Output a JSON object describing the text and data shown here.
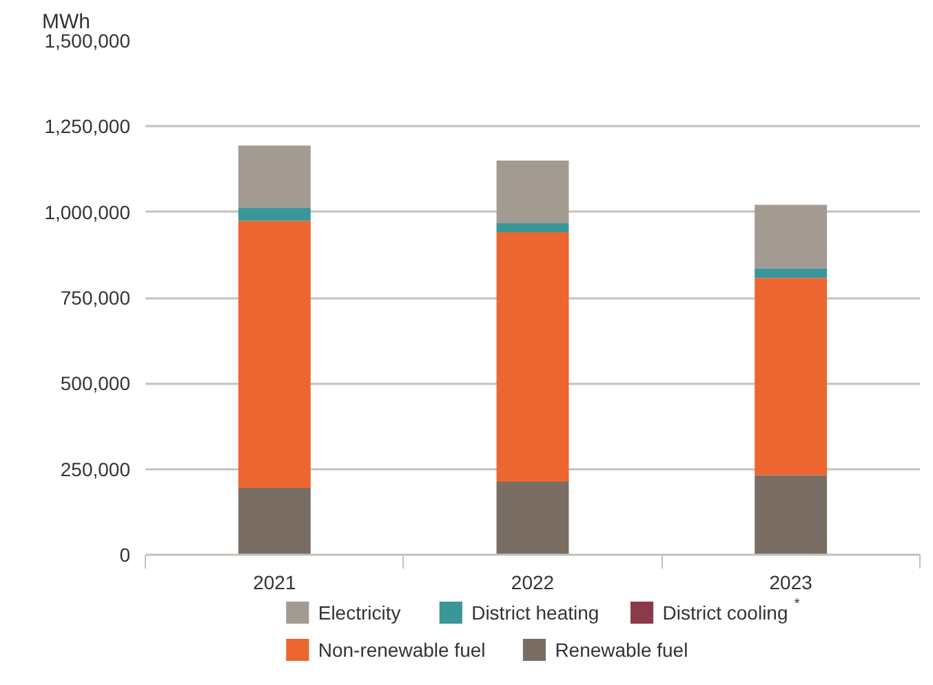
{
  "chart_data": {
    "type": "bar",
    "stacked": true,
    "ylabel": "MWh",
    "categories": [
      "2021",
      "2022",
      "2023"
    ],
    "series": [
      {
        "name": "Renewable fuel",
        "color": "#7a6e64",
        "values": [
          195000,
          213000,
          232000
        ]
      },
      {
        "name": "Non-renewable fuel",
        "color": "#eb6630",
        "values": [
          779000,
          728000,
          576000
        ]
      },
      {
        "name": "District cooling$^{*}$",
        "color": "#8b3a49",
        "values": [
          0,
          0,
          0
        ]
      },
      {
        "name": "District heating",
        "color": "#3a9797",
        "values": [
          39000,
          26000,
          28000
        ]
      },
      {
        "name": "Electricity",
        "color": "#a39a92",
        "values": [
          181000,
          183000,
          185000
        ]
      }
    ],
    "ylim": [
      0,
      1500000
    ],
    "yticks": [
      0,
      {
        "value": 250000,
        "label": "250,000"
      },
      {
        "value": 500000,
        "label": "500,000"
      },
      {
        "value": 750000,
        "label": "750,000"
      },
      {
        "value": 1000000,
        "label": "1,000,000"
      },
      {
        "value": 1250000,
        "label": "1,250,000"
      },
      {
        "value": 1500000,
        "label": "1,500,000"
      }
    ],
    "grid": "y",
    "legend": "bottom"
  }
}
